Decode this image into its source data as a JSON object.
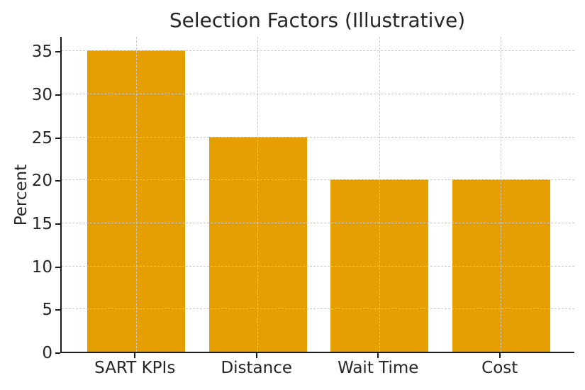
{
  "chart_data": {
    "type": "bar",
    "title": "Selection Factors (Illustrative)",
    "xlabel": "",
    "ylabel": "Percent",
    "categories": [
      "SART KPIs",
      "Distance",
      "Wait Time",
      "Cost"
    ],
    "values": [
      35,
      25,
      20,
      20
    ],
    "yticks": [
      0,
      5,
      10,
      15,
      20,
      25,
      30,
      35
    ],
    "ylim": [
      0,
      36.75
    ],
    "grid": true,
    "grid_style": "dashed",
    "grid_over_bars": true,
    "legend": "none",
    "colors": {
      "bar": "#E69F00",
      "grid": "#c9c9c9",
      "spine": "#1a1a1a",
      "text": "#262626",
      "background": "#ffffff"
    }
  }
}
